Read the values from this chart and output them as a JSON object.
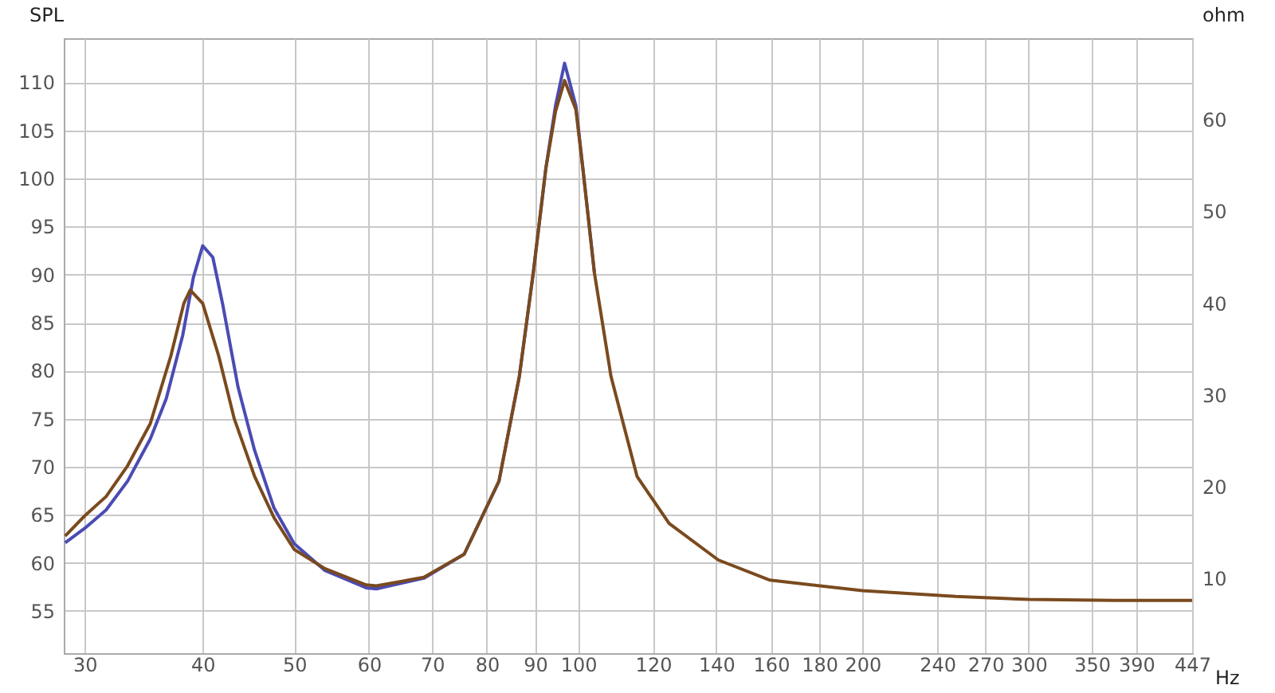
{
  "chart_data": {
    "type": "line",
    "xlabel": "Hz",
    "ylabel": "SPL",
    "y2label": "ohm",
    "log": "x",
    "grid": true,
    "xlim": [
      28.5,
      447
    ],
    "xticks": [
      30,
      40,
      50,
      60,
      70,
      80,
      90,
      100,
      120,
      140,
      160,
      180,
      200,
      240,
      270,
      300,
      350,
      390,
      447
    ],
    "ylim": [
      50.6,
      114.6
    ],
    "yticks": [
      55,
      60,
      65,
      70,
      75,
      80,
      85,
      90,
      95,
      100,
      105,
      110
    ],
    "y2lim": [
      1.8,
      68.9
    ],
    "y2ticks": [
      10,
      20,
      30,
      40,
      50,
      60
    ],
    "series": [
      {
        "color": "#4b4bb4",
        "x": [
          28.6,
          30,
          31.6,
          33.3,
          35.2,
          36.6,
          38.1,
          39.1,
          40,
          41,
          42,
          43.6,
          45.4,
          47.6,
          50,
          53.9,
          59.6,
          61.1,
          68.6,
          75.7,
          82.4,
          86.6,
          89.6,
          92.4,
          94.6,
          96.7,
          99.4,
          101.1,
          104
        ],
        "values": [
          62.1,
          63.6,
          65.5,
          68.5,
          72.9,
          77.1,
          83.7,
          89.7,
          93,
          91.8,
          86.9,
          78.3,
          71.7,
          65.7,
          62,
          59.2,
          57.4,
          57.3,
          58.4,
          60.9,
          68.5,
          79.4,
          90.2,
          101.1,
          107.6,
          112,
          107.6,
          101.1,
          90.2
        ]
      },
      {
        "color": "#7a4a1e",
        "x": [
          28.6,
          30,
          31.6,
          33.3,
          35.2,
          37,
          38.2,
          38.8,
          40,
          41.6,
          43.2,
          45.4,
          47.6,
          50,
          53.9,
          59.6,
          61.1,
          68.6,
          75.7,
          82.4,
          86.6,
          89.6,
          92.4,
          94.6,
          96.7,
          99.4,
          101.1,
          104,
          108.3,
          115.4,
          124.8,
          140.7,
          159.6,
          200,
          251,
          300,
          370,
          447
        ],
        "values": [
          62.8,
          64.9,
          66.9,
          70.1,
          74.5,
          81.5,
          87,
          88.4,
          87,
          81.5,
          75,
          69,
          64.7,
          61.4,
          59.4,
          57.7,
          57.6,
          58.5,
          60.9,
          68.5,
          79.4,
          90.2,
          101.1,
          107,
          110.2,
          107.2,
          101.1,
          90.2,
          79.4,
          69,
          64.1,
          60.3,
          58.2,
          57.1,
          56.5,
          56.2,
          56.1,
          56.1
        ]
      }
    ]
  }
}
